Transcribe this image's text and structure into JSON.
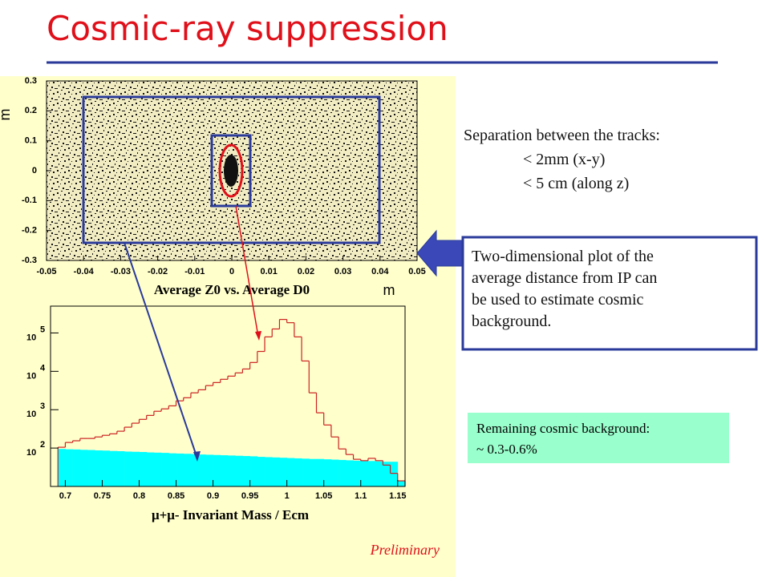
{
  "header": {
    "title": "Cosmic-ray suppression"
  },
  "chart_data": [
    {
      "type": "scatter",
      "title": "Average Z0 vs. Average D0",
      "x_label": "m",
      "y_label": "m",
      "xlim": [
        -0.05,
        0.05
      ],
      "xticks": [
        -0.05,
        -0.04,
        -0.03,
        -0.02,
        -0.01,
        0,
        0.01,
        0.02,
        0.03,
        0.04,
        0.05
      ],
      "ylim": [
        -0.3,
        0.3
      ],
      "yticks": [
        0.3,
        0.2,
        0.1,
        0,
        -0.1,
        -0.2,
        -0.3
      ]
    },
    {
      "type": "histogram",
      "title": "μ+μ- Invariant Mass / Ecm",
      "log_scale": true,
      "xlim": [
        0.68,
        1.16
      ],
      "xticks": [
        0.7,
        0.75,
        0.8,
        0.85,
        0.9,
        0.95,
        1,
        1.05,
        1.1,
        1.15
      ],
      "ylim": [
        10,
        500000
      ],
      "yticks": [
        {
          "value": 100,
          "label": "10",
          "power": "2"
        },
        {
          "value": 1000,
          "label": "10",
          "power": "3"
        },
        {
          "value": 10000,
          "label": "10",
          "power": "4"
        },
        {
          "value": 100000,
          "label": "10",
          "power": "5"
        }
      ],
      "bins": [
        0.69,
        0.7,
        0.71,
        0.72,
        0.73,
        0.74,
        0.75,
        0.76,
        0.77,
        0.78,
        0.79,
        0.8,
        0.81,
        0.82,
        0.83,
        0.84,
        0.85,
        0.86,
        0.87,
        0.88,
        0.89,
        0.9,
        0.91,
        0.92,
        0.93,
        0.94,
        0.95,
        0.96,
        0.97,
        0.98,
        0.99,
        1.0,
        1.01,
        1.02,
        1.03,
        1.04,
        1.05,
        1.06,
        1.07,
        1.08,
        1.09,
        1.1,
        1.11,
        1.12,
        1.13,
        1.14,
        1.15,
        1.16
      ],
      "series": [
        {
          "color": "#00ffff",
          "filled": true,
          "values": [
            95,
            93,
            92,
            90,
            89,
            87,
            86,
            84,
            83,
            81,
            80,
            79,
            77,
            76,
            75,
            73,
            72,
            71,
            70,
            68,
            67,
            66,
            65,
            64,
            63,
            62,
            61,
            59,
            58,
            57,
            56,
            55,
            54,
            53,
            52,
            52,
            51,
            50,
            49,
            48,
            47,
            46,
            46,
            45,
            44,
            44,
            14
          ]
        },
        {
          "color": "#cc2222",
          "filled": false,
          "values": [
            105,
            140,
            155,
            178,
            178,
            195,
            215,
            235,
            275,
            350,
            445,
            560,
            710,
            910,
            1050,
            1260,
            1700,
            2050,
            2750,
            3300,
            4250,
            5100,
            6200,
            7500,
            9100,
            11500,
            17000,
            33000,
            79000,
            127000,
            225000,
            185000,
            79000,
            18600,
            2750,
            830,
            400,
            195,
            95,
            68,
            51,
            47,
            54,
            47,
            36,
            22,
            14
          ]
        }
      ],
      "note": "Preliminary"
    }
  ],
  "text": {
    "separation": {
      "heading": "Separation between the tracks:",
      "lines": [
        "< 2mm (x-y)",
        "< 5 cm (along z)"
      ]
    },
    "box": [
      "Two-dimensional plot of the",
      "average distance from IP can",
      "be used to estimate cosmic",
      "background."
    ],
    "remaining": [
      "Remaining cosmic background:",
      "~ 0.3-0.6%"
    ]
  }
}
